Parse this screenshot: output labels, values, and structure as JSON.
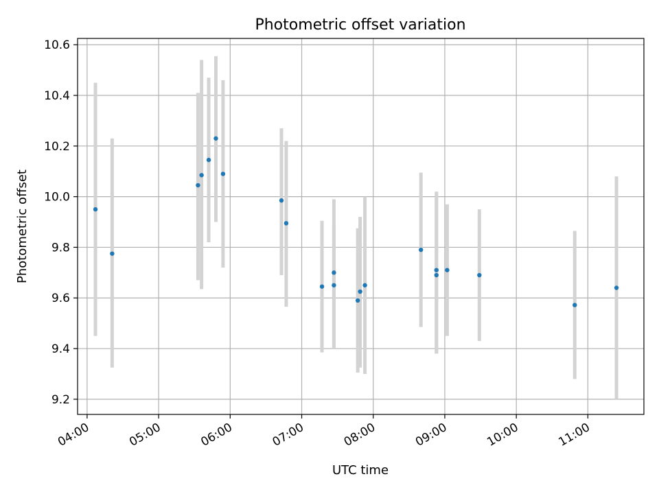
{
  "chart_data": {
    "type": "scatter",
    "title": "Photometric offset variation",
    "xlabel": "UTC time",
    "ylabel": "Photometric offset",
    "xlim": [
      "03:52",
      "11:47"
    ],
    "ylim": [
      9.14,
      10.625
    ],
    "grid": true,
    "xticks": [
      "04:00",
      "05:00",
      "06:00",
      "07:00",
      "08:00",
      "09:00",
      "10:00",
      "11:00"
    ],
    "yticks": [
      "9.2",
      "9.4",
      "9.6",
      "9.8",
      "10.0",
      "10.2",
      "10.4",
      "10.6"
    ],
    "colors": {
      "marker": "#1f77b4",
      "errorbar": "#d3d3d3",
      "grid": "#b0b0b0",
      "frame": "#000000"
    },
    "points": [
      {
        "x": "04:07",
        "y": 9.95,
        "ylow": 9.45,
        "yhigh": 10.45
      },
      {
        "x": "04:21",
        "y": 9.775,
        "ylow": 9.325,
        "yhigh": 10.23
      },
      {
        "x": "05:33",
        "y": 10.045,
        "ylow": 9.67,
        "yhigh": 10.41
      },
      {
        "x": "05:36",
        "y": 10.085,
        "ylow": 9.635,
        "yhigh": 10.54
      },
      {
        "x": "05:42",
        "y": 10.145,
        "ylow": 9.82,
        "yhigh": 10.47
      },
      {
        "x": "05:48",
        "y": 10.23,
        "ylow": 9.9,
        "yhigh": 10.555
      },
      {
        "x": "05:54",
        "y": 10.09,
        "ylow": 9.72,
        "yhigh": 10.46
      },
      {
        "x": "06:43",
        "y": 9.985,
        "ylow": 9.69,
        "yhigh": 10.27
      },
      {
        "x": "06:47",
        "y": 9.895,
        "ylow": 9.565,
        "yhigh": 10.22
      },
      {
        "x": "07:17",
        "y": 9.645,
        "ylow": 9.385,
        "yhigh": 9.905
      },
      {
        "x": "07:27",
        "y": 9.7,
        "ylow": 9.4,
        "yhigh": 9.99
      },
      {
        "x": "07:27",
        "y": 9.65,
        "ylow": 9.4,
        "yhigh": 9.89
      },
      {
        "x": "07:47",
        "y": 9.59,
        "ylow": 9.305,
        "yhigh": 9.875
      },
      {
        "x": "07:49",
        "y": 9.625,
        "ylow": 9.325,
        "yhigh": 9.92
      },
      {
        "x": "07:53",
        "y": 9.65,
        "ylow": 9.3,
        "yhigh": 10.0
      },
      {
        "x": "08:40",
        "y": 9.79,
        "ylow": 9.485,
        "yhigh": 10.095
      },
      {
        "x": "08:53",
        "y": 9.71,
        "ylow": 9.38,
        "yhigh": 10.02
      },
      {
        "x": "08:53",
        "y": 9.69,
        "ylow": 9.38,
        "yhigh": 10.0
      },
      {
        "x": "09:02",
        "y": 9.71,
        "ylow": 9.45,
        "yhigh": 9.97
      },
      {
        "x": "09:29",
        "y": 9.69,
        "ylow": 9.43,
        "yhigh": 9.95
      },
      {
        "x": "10:49",
        "y": 9.572,
        "ylow": 9.28,
        "yhigh": 9.865
      },
      {
        "x": "11:24",
        "y": 9.64,
        "ylow": 9.2,
        "yhigh": 10.08
      }
    ]
  }
}
